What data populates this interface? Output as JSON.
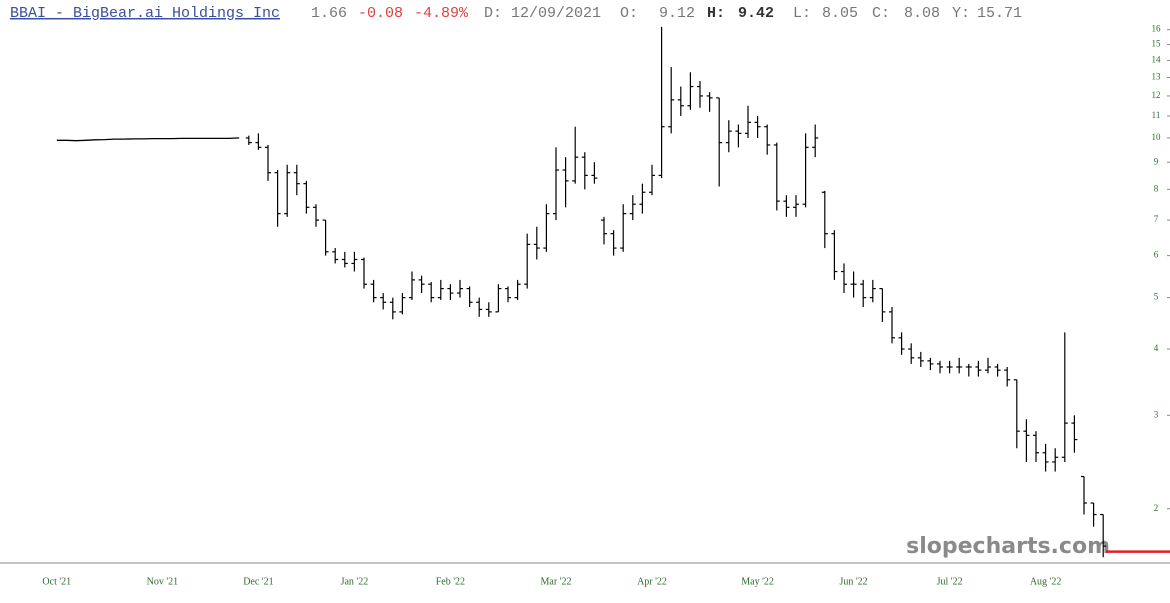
{
  "header": {
    "title": "BBAI - BigBear.ai Holdings Inc",
    "price": 1.66,
    "change": -0.08,
    "change_pct": "-4.89%",
    "date": "D: 12/09/2021",
    "open_label": "O:",
    "open": 9.12,
    "high_label": "H:",
    "high": 9.42,
    "low_label": "L:",
    "low": 8.05,
    "close_label": "C:",
    "close": 8.08,
    "prev_label": "Y:",
    "prev": 15.71
  },
  "chart_data": {
    "type": "ohlc",
    "log_scale": true,
    "color": "#000000",
    "price_line_color": "#e02020",
    "watermark": "slopecharts.com",
    "ylim": [
      1.58,
      18.2
    ],
    "yticks": [
      2,
      3,
      4,
      5,
      6,
      7,
      8,
      9,
      10,
      11,
      12,
      13,
      14,
      15,
      16
    ],
    "categories": [
      "Oct '21",
      null,
      null,
      null,
      null,
      null,
      null,
      null,
      null,
      null,
      null,
      "Nov '21",
      null,
      null,
      null,
      null,
      null,
      null,
      null,
      null,
      null,
      "Dec '21",
      null,
      null,
      null,
      null,
      null,
      null,
      null,
      null,
      null,
      "Jan '22",
      null,
      null,
      null,
      null,
      null,
      null,
      null,
      null,
      null,
      "Feb '22",
      null,
      null,
      null,
      null,
      null,
      null,
      null,
      null,
      null,
      null,
      "Mar '22",
      null,
      null,
      null,
      null,
      null,
      null,
      null,
      null,
      null,
      "Apr '22",
      null,
      null,
      null,
      null,
      null,
      null,
      null,
      null,
      null,
      null,
      "May '22",
      null,
      null,
      null,
      null,
      null,
      null,
      null,
      null,
      null,
      "Jun '22",
      null,
      null,
      null,
      null,
      null,
      null,
      null,
      null,
      null,
      "Jul '22",
      null,
      null,
      null,
      null,
      null,
      null,
      null,
      null,
      null,
      "Aug '22",
      null,
      null,
      null,
      null,
      null,
      null
    ],
    "line_values": [
      9.9,
      9.9,
      9.88,
      9.9,
      9.92,
      9.93,
      9.95,
      9.95,
      9.96,
      9.96,
      9.97,
      9.97,
      9.97,
      9.98,
      9.98,
      9.98,
      9.98,
      9.98,
      9.98,
      10.0,
      null,
      null,
      null,
      null,
      null,
      null,
      null,
      null,
      null,
      null,
      null,
      null,
      null,
      null,
      null,
      null,
      null,
      null,
      null,
      null,
      null,
      null,
      null,
      null,
      null,
      null,
      null,
      null,
      null,
      null,
      null,
      null,
      null,
      null,
      null,
      null,
      null,
      null,
      null,
      null,
      null,
      null,
      null,
      null,
      null,
      null,
      null,
      null,
      null,
      null,
      null,
      null,
      null,
      null,
      null,
      null,
      null,
      null,
      null,
      null,
      null,
      null,
      null,
      null,
      null,
      null,
      null,
      null,
      null,
      null,
      null,
      null,
      null,
      null,
      null,
      null,
      null,
      null,
      null,
      null,
      null,
      null,
      null,
      null,
      null,
      null,
      null,
      null,
      null,
      null
    ],
    "open": [
      null,
      null,
      null,
      null,
      null,
      null,
      null,
      null,
      null,
      null,
      null,
      null,
      null,
      null,
      null,
      null,
      null,
      null,
      null,
      null,
      10.0,
      9.8,
      9.6,
      8.6,
      7.2,
      8.6,
      8.2,
      7.4,
      7.0,
      6.1,
      5.9,
      5.8,
      5.9,
      5.3,
      5.0,
      4.9,
      4.7,
      5.0,
      5.4,
      5.3,
      5.0,
      5.2,
      5.1,
      5.2,
      4.9,
      4.75,
      4.7,
      5.2,
      5.0,
      5.3,
      6.3,
      6.2,
      7.2,
      8.7,
      8.3,
      9.2,
      8.5,
      7.0,
      6.6,
      6.2,
      7.2,
      7.5,
      7.9,
      8.5,
      10.5,
      11.8,
      11.5,
      12.5,
      12.0,
      11.9,
      9.8,
      10.3,
      10.2,
      10.7,
      10.5,
      9.7,
      7.6,
      7.4,
      7.5,
      9.6,
      7.9,
      6.6,
      5.6,
      5.3,
      5.3,
      5.0,
      5.2,
      4.7,
      4.2,
      4.0,
      3.85,
      3.8,
      3.75,
      3.7,
      3.7,
      3.7,
      3.7,
      3.65,
      3.7,
      3.65,
      3.5,
      2.8,
      2.75,
      2.55,
      2.45,
      2.5,
      2.9,
      2.3,
      2.05,
      1.95
    ],
    "high": [
      null,
      null,
      null,
      null,
      null,
      null,
      null,
      null,
      null,
      null,
      null,
      null,
      null,
      null,
      null,
      null,
      null,
      null,
      null,
      null,
      10.1,
      10.2,
      9.7,
      8.7,
      8.9,
      8.9,
      8.3,
      7.5,
      7.0,
      6.2,
      6.1,
      6.1,
      5.95,
      5.4,
      5.1,
      5.0,
      5.1,
      5.6,
      5.5,
      5.35,
      5.4,
      5.3,
      5.4,
      5.25,
      5.0,
      4.9,
      5.3,
      5.25,
      5.4,
      6.6,
      6.8,
      7.5,
      9.6,
      9.2,
      10.5,
      9.4,
      9.0,
      7.1,
      6.7,
      7.5,
      7.8,
      8.2,
      8.9,
      16.2,
      13.6,
      12.5,
      13.3,
      12.8,
      12.2,
      11.9,
      10.8,
      10.6,
      11.5,
      11.0,
      10.6,
      9.8,
      7.8,
      7.8,
      10.2,
      10.6,
      7.95,
      6.7,
      5.8,
      5.6,
      5.4,
      5.4,
      5.2,
      4.8,
      4.3,
      4.1,
      3.95,
      3.85,
      3.8,
      3.8,
      3.85,
      3.75,
      3.8,
      3.85,
      3.75,
      3.7,
      3.5,
      2.95,
      2.8,
      2.65,
      2.6,
      4.3,
      3.0,
      2.3,
      2.05,
      1.95
    ],
    "low": [
      null,
      null,
      null,
      null,
      null,
      null,
      null,
      null,
      null,
      null,
      null,
      null,
      null,
      null,
      null,
      null,
      null,
      null,
      null,
      null,
      9.7,
      9.5,
      8.3,
      6.8,
      7.1,
      7.8,
      7.2,
      6.8,
      6.0,
      5.8,
      5.7,
      5.6,
      5.2,
      4.9,
      4.75,
      4.55,
      4.65,
      4.95,
      5.1,
      4.9,
      4.95,
      4.95,
      5.0,
      4.8,
      4.6,
      4.6,
      4.7,
      4.9,
      4.95,
      5.2,
      5.9,
      6.1,
      7.0,
      7.4,
      8.2,
      8.0,
      8.2,
      6.3,
      6.0,
      6.1,
      7.0,
      7.2,
      7.8,
      8.4,
      10.2,
      11.0,
      11.3,
      11.4,
      11.2,
      8.1,
      9.4,
      9.6,
      10.0,
      10.0,
      9.3,
      7.3,
      7.1,
      7.1,
      7.4,
      9.2,
      6.2,
      5.4,
      5.1,
      5.0,
      4.8,
      4.9,
      4.5,
      4.1,
      3.9,
      3.75,
      3.7,
      3.65,
      3.6,
      3.6,
      3.6,
      3.55,
      3.55,
      3.6,
      3.55,
      3.4,
      2.6,
      2.45,
      2.45,
      2.35,
      2.35,
      2.45,
      2.55,
      1.95,
      1.85,
      1.62
    ],
    "close": [
      null,
      null,
      null,
      null,
      null,
      null,
      null,
      null,
      null,
      null,
      null,
      null,
      null,
      null,
      null,
      null,
      null,
      null,
      null,
      null,
      9.8,
      9.6,
      8.6,
      7.2,
      8.6,
      8.2,
      7.4,
      7.0,
      6.1,
      5.9,
      5.8,
      5.9,
      5.3,
      5.0,
      4.9,
      4.7,
      5.0,
      5.4,
      5.3,
      5.0,
      5.2,
      5.1,
      5.2,
      4.9,
      4.75,
      4.7,
      5.2,
      5.0,
      5.3,
      6.3,
      6.2,
      7.2,
      8.7,
      8.3,
      9.2,
      8.5,
      8.4,
      6.6,
      6.2,
      7.2,
      7.5,
      7.9,
      8.5,
      10.5,
      11.8,
      11.5,
      12.5,
      12.0,
      11.9,
      9.8,
      10.3,
      10.2,
      10.7,
      10.5,
      9.7,
      7.6,
      7.4,
      7.5,
      9.6,
      10.0,
      6.6,
      5.6,
      5.3,
      5.3,
      5.0,
      5.2,
      4.7,
      4.2,
      4.0,
      3.85,
      3.8,
      3.75,
      3.7,
      3.7,
      3.7,
      3.7,
      3.65,
      3.7,
      3.65,
      3.5,
      2.8,
      2.75,
      2.55,
      2.45,
      2.5,
      2.9,
      2.7,
      2.05,
      1.95,
      1.7
    ]
  }
}
